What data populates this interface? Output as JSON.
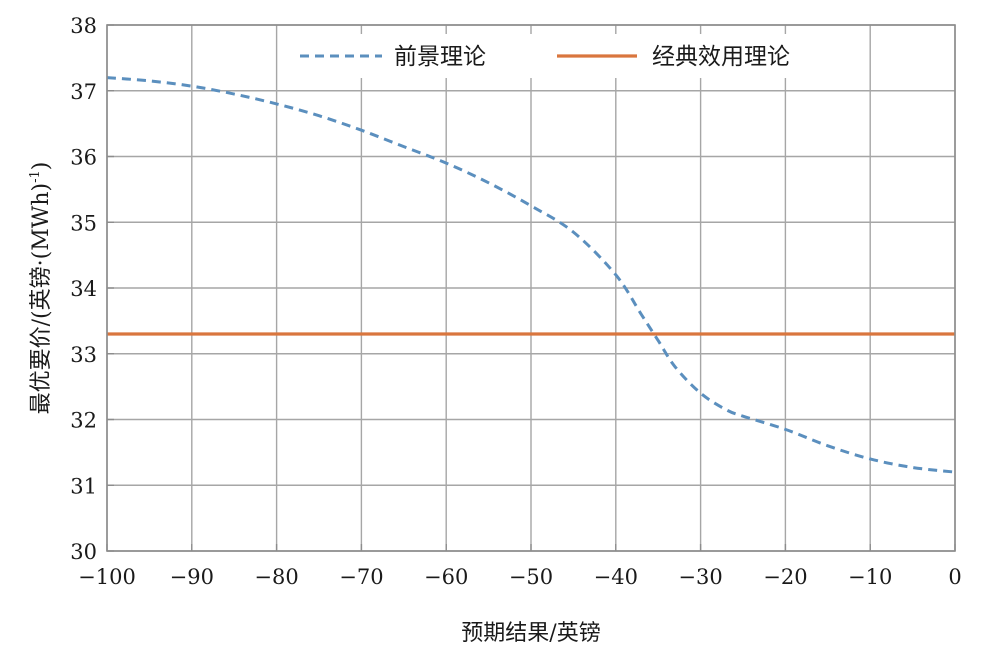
{
  "chart_data": {
    "type": "line",
    "xlabel": "预期结果/英镑",
    "ylabel": "最优要价/(英镑·(MWh)",
    "ylabel_sup": "-1",
    "ylabel_close": ")",
    "xlim": [
      -100,
      0
    ],
    "ylim": [
      30,
      38
    ],
    "x_ticks": [
      -100,
      -90,
      -80,
      -70,
      -60,
      -50,
      -40,
      -30,
      -20,
      -10,
      0
    ],
    "x_tick_labels": [
      "−100",
      "−90",
      "−80",
      "−70",
      "−60",
      "−50",
      "−40",
      "−30",
      "−20",
      "−10",
      "0"
    ],
    "y_ticks": [
      30,
      31,
      32,
      33,
      34,
      35,
      36,
      37,
      38
    ],
    "y_tick_labels": [
      "30",
      "31",
      "32",
      "33",
      "34",
      "35",
      "36",
      "37",
      "38"
    ],
    "grid": true,
    "legend_position": "top-right",
    "series": [
      {
        "name": "前景理论",
        "style": "dashed",
        "color": "#5b8fbe",
        "x": [
          -100,
          -95,
          -90,
          -85,
          -80,
          -75,
          -70,
          -65,
          -60,
          -55,
          -50,
          -45,
          -40,
          -37,
          -35,
          -33,
          -30,
          -27,
          -25,
          -20,
          -15,
          -10,
          -5,
          0
        ],
        "y": [
          37.2,
          37.15,
          37.07,
          36.95,
          36.8,
          36.62,
          36.4,
          36.15,
          35.9,
          35.6,
          35.25,
          34.85,
          34.2,
          33.6,
          33.2,
          32.8,
          32.4,
          32.15,
          32.05,
          31.85,
          31.6,
          31.4,
          31.27,
          31.2
        ]
      },
      {
        "name": "经典效用理论",
        "style": "solid",
        "color": "#d9763e",
        "x": [
          -100,
          0
        ],
        "y": [
          33.3,
          33.3
        ]
      }
    ]
  }
}
